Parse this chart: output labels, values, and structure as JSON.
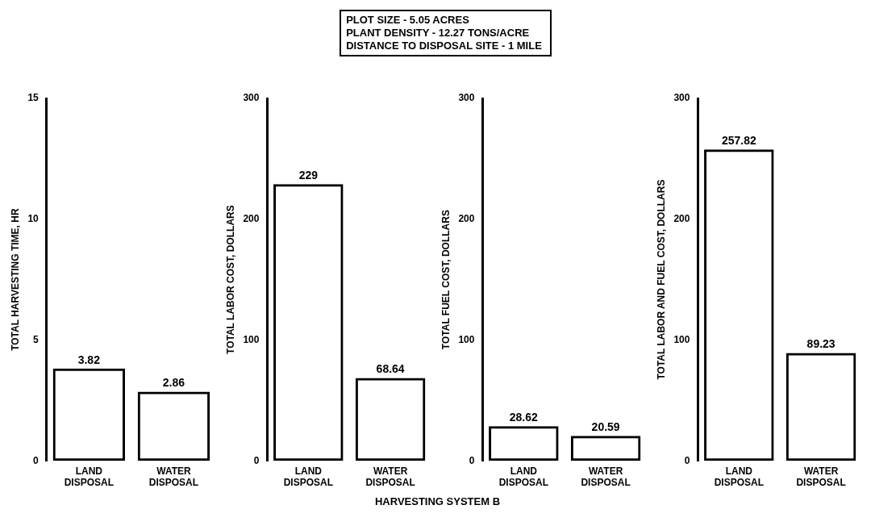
{
  "chart_data": [
    {
      "type": "bar",
      "annotations": [
        "PLOT SIZE - 5.05 ACRES",
        "PLANT DENSITY - 12.27 TONS/ACRE",
        "DISTANCE TO DISPOSAL SITE - 1 MILE"
      ],
      "ylabel": "TOTAL HARVESTING TIME, HR",
      "categories": [
        "LAND DISPOSAL",
        "WATER DISPOSAL"
      ],
      "values": [
        3.82,
        2.86
      ],
      "color": "#000000",
      "ylim": [
        0,
        15
      ],
      "yticks": [
        0,
        5,
        10,
        15
      ],
      "grid": false,
      "legend": false,
      "data_labels": true
    },
    {
      "type": "bar",
      "xlabel": "HARVESTING SYSTEM B",
      "ylabel": "TOTAL LABOR COST, DOLLARS",
      "categories": [
        "LAND DISPOSAL",
        "WATER DISPOSAL"
      ],
      "values": [
        229,
        68.64
      ],
      "color": "#000000",
      "ylim": [
        0,
        300
      ],
      "yticks": [
        0,
        100,
        200,
        300
      ],
      "grid": false,
      "legend": false,
      "data_labels": true
    },
    {
      "type": "bar",
      "ylabel": "TOTAL FUEL COST, DOLLARS",
      "categories": [
        "LAND DISPOSAL",
        "WATER DISPOSAL"
      ],
      "values": [
        28.62,
        20.59
      ],
      "color": "#000000",
      "ylim": [
        0,
        300
      ],
      "yticks": [
        0,
        100,
        200,
        300
      ],
      "grid": false,
      "legend": false,
      "data_labels": true
    },
    {
      "type": "bar",
      "ylabel": "TOTAL LABOR AND FUEL COST, DOLLARS",
      "categories": [
        "LAND DISPOSAL",
        "WATER DISPOSAL"
      ],
      "values": [
        257.82,
        89.23
      ],
      "color": "#000000",
      "ylim": [
        0,
        300
      ],
      "yticks": [
        0,
        100,
        200,
        300
      ],
      "grid": false,
      "legend": false,
      "data_labels": true
    }
  ]
}
